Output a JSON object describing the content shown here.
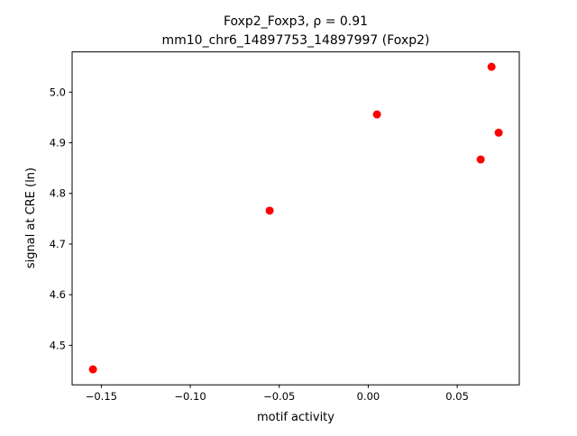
{
  "chart_data": {
    "type": "scatter",
    "title_line1": "Foxp2_Foxp3, ρ = 0.91",
    "title_line2": "mm10_chr6_14897753_14897997 (Foxp2)",
    "xlabel": "motif activity",
    "ylabel": "signal at CRE (ln)",
    "xlim": [
      -0.1664,
      0.0849
    ],
    "ylim": [
      4.422,
      5.0795
    ],
    "xticks": [
      -0.15,
      -0.1,
      -0.05,
      0.0,
      0.05
    ],
    "xtick_labels": [
      "−0.15",
      "−0.10",
      "−0.05",
      "0.00",
      "0.05"
    ],
    "yticks": [
      4.5,
      4.6,
      4.7,
      4.8,
      4.9,
      5.0
    ],
    "ytick_labels": [
      "4.5",
      "4.6",
      "4.7",
      "4.8",
      "4.9",
      "5.0"
    ],
    "grid": false,
    "point_color": "#ff0000",
    "x": [
      -0.1547,
      -0.0554,
      0.0049,
      0.0632,
      0.0693,
      0.0733
    ],
    "y": [
      4.4525,
      4.766,
      4.956,
      4.867,
      5.05,
      4.92
    ]
  }
}
